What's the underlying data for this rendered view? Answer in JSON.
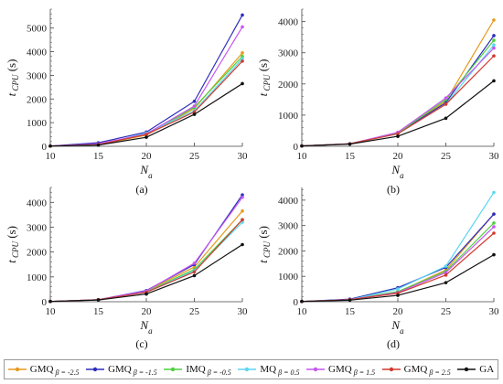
{
  "chart_data": [
    {
      "type": "line",
      "panel_label": "(a)",
      "xlabel": "N_a",
      "ylabel": "t_CPU (s)",
      "x": [
        10,
        15,
        20,
        25,
        30
      ],
      "ylim": [
        0,
        5800
      ],
      "yticks": [
        0,
        1000,
        2000,
        3000,
        4000,
        5000
      ],
      "series": [
        {
          "name": "GMQ β = -2.5",
          "values": [
            10,
            60,
            470,
            1600,
            3950
          ]
        },
        {
          "name": "GMQ β = -1.5",
          "values": [
            12,
            150,
            600,
            1900,
            5550
          ]
        },
        {
          "name": "IMQ β = -0.5",
          "values": [
            10,
            70,
            500,
            1650,
            3800
          ]
        },
        {
          "name": "MQ β = 0.5",
          "values": [
            10,
            50,
            560,
            1500,
            3700
          ]
        },
        {
          "name": "GMQ β = 1.5",
          "values": [
            10,
            100,
            520,
            1700,
            5050
          ]
        },
        {
          "name": "GMQ β = 2.5",
          "values": [
            10,
            70,
            500,
            1450,
            3600
          ]
        },
        {
          "name": "GA",
          "values": [
            10,
            50,
            380,
            1350,
            2650
          ]
        }
      ]
    },
    {
      "type": "line",
      "panel_label": "(b)",
      "xlabel": "N_a",
      "ylabel": "t_CPU (s)",
      "x": [
        10,
        15,
        20,
        25,
        30
      ],
      "ylim": [
        0,
        4400
      ],
      "yticks": [
        0,
        1000,
        2000,
        3000,
        4000
      ],
      "series": [
        {
          "name": "GMQ β = -2.5",
          "values": [
            10,
            80,
            430,
            1450,
            4050
          ]
        },
        {
          "name": "GMQ β = -1.5",
          "values": [
            10,
            80,
            420,
            1400,
            3550
          ]
        },
        {
          "name": "IMQ β = -0.5",
          "values": [
            10,
            80,
            420,
            1500,
            3400
          ]
        },
        {
          "name": "MQ β = 0.5",
          "values": [
            10,
            80,
            400,
            1350,
            3250
          ]
        },
        {
          "name": "GMQ β = 1.5",
          "values": [
            10,
            80,
            450,
            1550,
            3150
          ]
        },
        {
          "name": "GMQ β = 2.5",
          "values": [
            10,
            80,
            400,
            1350,
            2900
          ]
        },
        {
          "name": "GA",
          "values": [
            10,
            70,
            320,
            900,
            2100
          ]
        }
      ]
    },
    {
      "type": "line",
      "panel_label": "(c)",
      "xlabel": "N_a",
      "ylabel": "t_CPU (s)",
      "x": [
        10,
        15,
        20,
        25,
        30
      ],
      "ylim": [
        0,
        4600
      ],
      "yticks": [
        0,
        1000,
        2000,
        3000,
        4000
      ],
      "series": [
        {
          "name": "GMQ β = -2.5",
          "values": [
            10,
            80,
            420,
            1400,
            3650
          ]
        },
        {
          "name": "GMQ β = -1.5",
          "values": [
            10,
            80,
            450,
            1500,
            4300
          ]
        },
        {
          "name": "IMQ β = -0.5",
          "values": [
            10,
            80,
            400,
            1300,
            3300
          ]
        },
        {
          "name": "MQ β = 0.5",
          "values": [
            10,
            80,
            380,
            1250,
            3200
          ]
        },
        {
          "name": "GMQ β = 1.5",
          "values": [
            10,
            80,
            430,
            1550,
            4200
          ]
        },
        {
          "name": "GMQ β = 2.5",
          "values": [
            10,
            80,
            380,
            1200,
            3300
          ]
        },
        {
          "name": "GA",
          "values": [
            10,
            70,
            310,
            1050,
            2300
          ]
        }
      ]
    },
    {
      "type": "line",
      "panel_label": "(d)",
      "xlabel": "N_a",
      "ylabel": "t_CPU (s)",
      "x": [
        10,
        15,
        20,
        25,
        30
      ],
      "ylim": [
        0,
        4500
      ],
      "yticks": [
        0,
        1000,
        2000,
        3000,
        4000
      ],
      "series": [
        {
          "name": "GMQ β = -2.5",
          "values": [
            10,
            80,
            380,
            1250,
            3450
          ]
        },
        {
          "name": "GMQ β = -1.5",
          "values": [
            10,
            100,
            550,
            1350,
            3450
          ]
        },
        {
          "name": "IMQ β = -0.5",
          "values": [
            10,
            80,
            400,
            1200,
            3100
          ]
        },
        {
          "name": "MQ β = 0.5",
          "values": [
            10,
            80,
            500,
            1400,
            4300
          ]
        },
        {
          "name": "GMQ β = 1.5",
          "values": [
            10,
            80,
            360,
            1150,
            2950
          ]
        },
        {
          "name": "GMQ β = 2.5",
          "values": [
            10,
            80,
            330,
            1050,
            2700
          ]
        },
        {
          "name": "GA",
          "values": [
            10,
            60,
            250,
            750,
            1850
          ]
        }
      ]
    }
  ],
  "legend": {
    "entries": [
      {
        "label": "GMQ",
        "sub": "β = -2.5",
        "color": "#e59a1e"
      },
      {
        "label": "GMQ",
        "sub": "β = -1.5",
        "color": "#2d2dbb"
      },
      {
        "label": "IMQ",
        "sub": "β = -0.5",
        "color": "#4fcf3f"
      },
      {
        "label": "MQ",
        "sub": "β = 0.5",
        "color": "#5cd6f0"
      },
      {
        "label": "GMQ",
        "sub": "β = 1.5",
        "color": "#c656f0"
      },
      {
        "label": "GMQ",
        "sub": "β = 2.5",
        "color": "#d13a2f"
      },
      {
        "label": "GA",
        "sub": "",
        "color": "#111111"
      }
    ]
  },
  "colors": [
    "#e59a1e",
    "#2d2dbb",
    "#4fcf3f",
    "#5cd6f0",
    "#c656f0",
    "#d13a2f",
    "#111111"
  ]
}
